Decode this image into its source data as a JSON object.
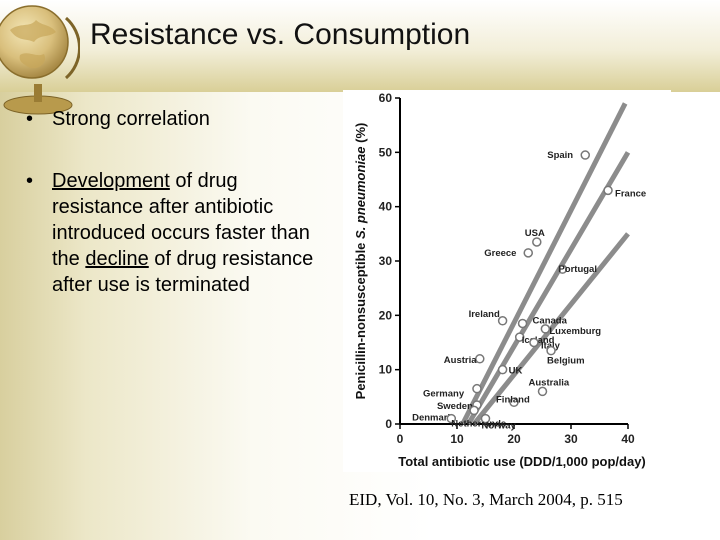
{
  "slide": {
    "title": "Resistance vs. Consumption",
    "bullets": [
      {
        "marker": "•",
        "text": "Strong correlation"
      },
      {
        "marker": "•",
        "parts": [
          "Development",
          " of drug resistance after antibiotic introduced occurs faster than the ",
          "decline",
          " of drug resistance after use is terminated"
        ]
      }
    ],
    "citation": "EID, Vol. 10, No. 3, March 2004, p. 515"
  },
  "chart_data": {
    "type": "scatter",
    "title": "",
    "xlabel": "Total antibiotic use (DDD/1,000 pop/day)",
    "ylabel_prefix": "Penicillin-nonsusceptible ",
    "ylabel_italic": "S. pneumoniae",
    "ylabel_suffix": " (%)",
    "xlim": [
      0,
      40
    ],
    "ylim": [
      0,
      60
    ],
    "xticks": [
      0,
      10,
      20,
      30,
      40
    ],
    "yticks": [
      0,
      10,
      20,
      30,
      40,
      50,
      60
    ],
    "grid": false,
    "points": [
      {
        "label": "Spain",
        "x": 32.5,
        "y": 49.5
      },
      {
        "label": "France",
        "x": 36.5,
        "y": 43
      },
      {
        "label": "USA",
        "x": 24,
        "y": 33.5
      },
      {
        "label": "Greece",
        "x": 22.5,
        "y": 31.5
      },
      {
        "label": "Portugal",
        "x": 28.5,
        "y": 28.5
      },
      {
        "label": "Ireland",
        "x": 18,
        "y": 19
      },
      {
        "label": "Canada",
        "x": 21.5,
        "y": 18.5
      },
      {
        "label": "Luxemburg",
        "x": 25.5,
        "y": 17.5
      },
      {
        "label": "Iceland",
        "x": 21,
        "y": 16
      },
      {
        "label": "Italy",
        "x": 23.5,
        "y": 15
      },
      {
        "label": "Austria",
        "x": 14,
        "y": 12
      },
      {
        "label": "Belgium",
        "x": 26.5,
        "y": 13.5
      },
      {
        "label": "UK",
        "x": 18,
        "y": 10
      },
      {
        "label": "Germany",
        "x": 13.5,
        "y": 6.5
      },
      {
        "label": "Australia",
        "x": 25,
        "y": 6
      },
      {
        "label": "Finland",
        "x": 20,
        "y": 4
      },
      {
        "label": "Sweden",
        "x": 13.5,
        "y": 3.5
      },
      {
        "label": "Denmark",
        "x": 13,
        "y": 2.5
      },
      {
        "label": "Netherlands",
        "x": 9,
        "y": 1
      },
      {
        "label": "Norway",
        "x": 15,
        "y": 1
      }
    ],
    "trend_lines": [
      {
        "x1": 11,
        "y1": 0,
        "x2": 39.5,
        "y2": 59
      },
      {
        "x1": 12,
        "y1": 0,
        "x2": 40,
        "y2": 50
      },
      {
        "x1": 13,
        "y1": 0,
        "x2": 40,
        "y2": 35
      }
    ]
  }
}
